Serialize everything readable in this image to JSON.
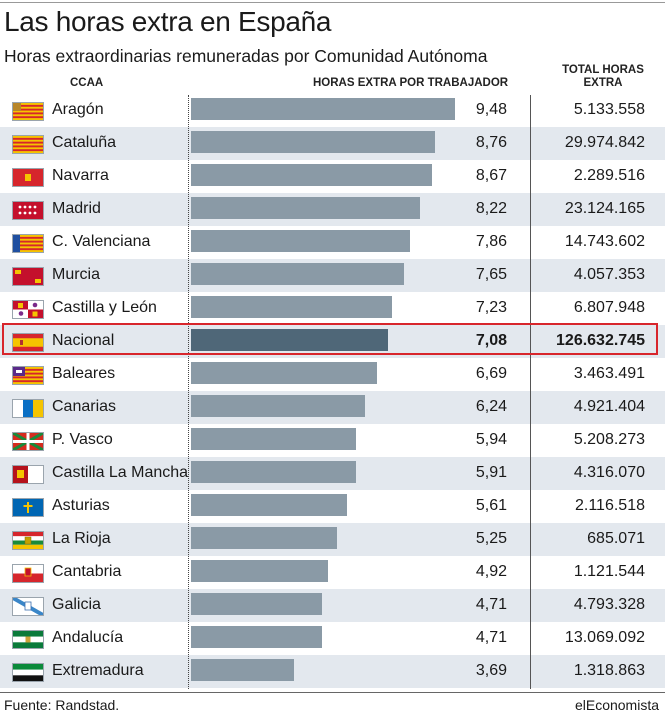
{
  "title": "Las horas extra en España",
  "subtitle": "Horas extraordinarias remuneradas por Comunidad Autónoma",
  "headers": {
    "ccaa": "CCAA",
    "horas": "HORAS EXTRA POR TRABAJADOR",
    "total": "TOTAL HORAS EXTRA"
  },
  "source": "Fuente: Randstad.",
  "brand": "elEconomista",
  "colors": {
    "bar": "#8a9aa6",
    "bar_highlight": "#4f6778",
    "highlight_border": "#d8262c",
    "row_shade": "#e3e8ee"
  },
  "chart_data": {
    "type": "bar",
    "orientation": "horizontal",
    "title": "Las horas extra en España",
    "subtitle": "Horas extraordinarias remuneradas por Comunidad Autónoma",
    "xlim": [
      0,
      9.48
    ],
    "highlight": "Nacional",
    "rows": [
      {
        "name": "Aragón",
        "value": 9.48,
        "label": "9,48",
        "total": "5.133.558",
        "flag": "aragon"
      },
      {
        "name": "Cataluña",
        "value": 8.76,
        "label": "8,76",
        "total": "29.974.842",
        "flag": "cataluna"
      },
      {
        "name": "Navarra",
        "value": 8.67,
        "label": "8,67",
        "total": "2.289.516",
        "flag": "navarra"
      },
      {
        "name": "Madrid",
        "value": 8.22,
        "label": "8,22",
        "total": "23.124.165",
        "flag": "madrid"
      },
      {
        "name": "C. Valenciana",
        "value": 7.86,
        "label": "7,86",
        "total": "14.743.602",
        "flag": "valenciana"
      },
      {
        "name": "Murcia",
        "value": 7.65,
        "label": "7,65",
        "total": "4.057.353",
        "flag": "murcia"
      },
      {
        "name": "Castilla y León",
        "value": 7.23,
        "label": "7,23",
        "total": "6.807.948",
        "flag": "castillaleon"
      },
      {
        "name": "Nacional",
        "value": 7.08,
        "label": "7,08",
        "total": "126.632.745",
        "flag": "espana"
      },
      {
        "name": "Baleares",
        "value": 6.69,
        "label": "6,69",
        "total": "3.463.491",
        "flag": "baleares"
      },
      {
        "name": "Canarias",
        "value": 6.24,
        "label": "6,24",
        "total": "4.921.404",
        "flag": "canarias"
      },
      {
        "name": "P. Vasco",
        "value": 5.94,
        "label": "5,94",
        "total": "5.208.273",
        "flag": "vasco"
      },
      {
        "name": "Castilla La Mancha",
        "value": 5.91,
        "label": "5,91",
        "total": "4.316.070",
        "flag": "mancha"
      },
      {
        "name": "Asturias",
        "value": 5.61,
        "label": "5,61",
        "total": "2.116.518",
        "flag": "asturias"
      },
      {
        "name": "La Rioja",
        "value": 5.25,
        "label": "5,25",
        "total": "685.071",
        "flag": "rioja"
      },
      {
        "name": "Cantabria",
        "value": 4.92,
        "label": "4,92",
        "total": "1.121.544",
        "flag": "cantabria"
      },
      {
        "name": "Galicia",
        "value": 4.71,
        "label": "4,71",
        "total": "4.793.328",
        "flag": "galicia"
      },
      {
        "name": "Andalucía",
        "value": 4.71,
        "label": "4,71",
        "total": "13.069.092",
        "flag": "andalucia"
      },
      {
        "name": "Extremadura",
        "value": 3.69,
        "label": "3,69",
        "total": "1.318.863",
        "flag": "extremadura"
      }
    ]
  }
}
